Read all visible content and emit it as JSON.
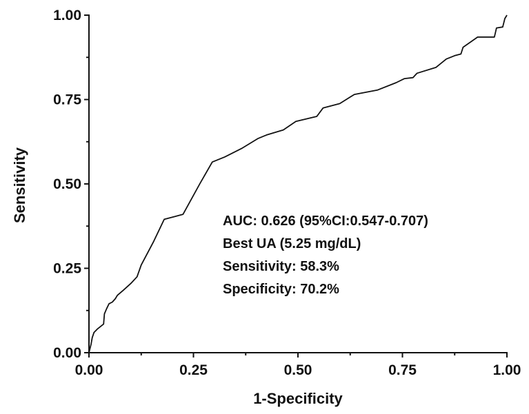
{
  "chart_data": {
    "type": "line",
    "title": "",
    "xlabel": "1-Specificity",
    "ylabel": "Sensitivity",
    "xlim": [
      0,
      1
    ],
    "ylim": [
      0,
      1
    ],
    "x_ticks": [
      "0.00",
      "0.25",
      "0.50",
      "0.75",
      "1.00"
    ],
    "y_ticks": [
      "0.00",
      "0.25",
      "0.50",
      "0.75",
      "1.00"
    ],
    "grid": false,
    "legend": "none",
    "series": [
      {
        "color": "#111111",
        "x": [
          0,
          0.005,
          0.008,
          0.012,
          0.02,
          0.035,
          0.037,
          0.042,
          0.048,
          0.056,
          0.063,
          0.068,
          0.082,
          0.1,
          0.115,
          0.125,
          0.155,
          0.18,
          0.225,
          0.265,
          0.295,
          0.325,
          0.365,
          0.405,
          0.425,
          0.465,
          0.495,
          0.545,
          0.56,
          0.6,
          0.635,
          0.69,
          0.735,
          0.755,
          0.775,
          0.785,
          0.83,
          0.855,
          0.875,
          0.89,
          0.895,
          0.93,
          0.97,
          0.975,
          0.99,
          0.995,
          1.0
        ],
        "y": [
          0,
          0.025,
          0.045,
          0.06,
          0.07,
          0.085,
          0.115,
          0.13,
          0.145,
          0.15,
          0.16,
          0.17,
          0.185,
          0.205,
          0.225,
          0.26,
          0.33,
          0.395,
          0.41,
          0.5,
          0.565,
          0.58,
          0.605,
          0.635,
          0.645,
          0.66,
          0.685,
          0.7,
          0.725,
          0.738,
          0.765,
          0.778,
          0.8,
          0.812,
          0.815,
          0.828,
          0.845,
          0.87,
          0.88,
          0.885,
          0.905,
          0.935,
          0.935,
          0.962,
          0.965,
          0.99,
          1.0
        ]
      }
    ],
    "annotations": [
      "AUC: 0.626 (95%CI:0.547-0.707)",
      "Best UA (5.25 mg/dL)",
      "Sensitivity: 58.3%",
      "Specificity: 70.2%"
    ]
  }
}
